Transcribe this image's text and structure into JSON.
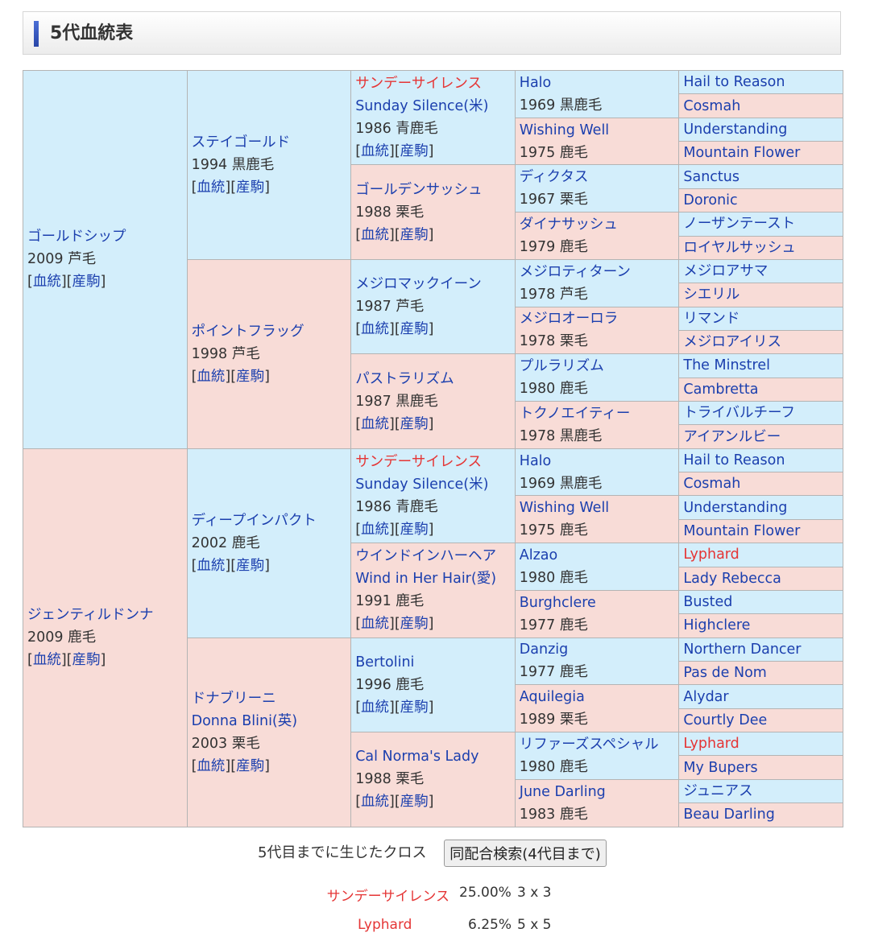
{
  "header": {
    "title": "5代血統表"
  },
  "link_labels": [
    "血統",
    "産駒"
  ],
  "colors": {
    "sire": "#d3eefb",
    "dam": "#f8dcd7",
    "link": "#1b3fae",
    "cross": "#e53535"
  },
  "pedigree": {
    "gen1": [
      {
        "name": "ゴールドシップ",
        "info": "2009 芦毛"
      },
      {
        "name": "ジェンティルドンナ",
        "info": "2009 鹿毛"
      }
    ],
    "gen2": [
      {
        "name": "ステイゴールド",
        "info": "1994 黒鹿毛"
      },
      {
        "name": "ポイントフラッグ",
        "info": "1998 芦毛"
      },
      {
        "name": "ディープインパクト",
        "info": "2002 鹿毛"
      },
      {
        "name": "ドナブリーニ",
        "name_en": "Donna Blini(英)",
        "info": "2003 栗毛"
      }
    ],
    "gen3": [
      {
        "name": "サンデーサイレンス",
        "name_en": "Sunday Silence(米)",
        "info": "1986 青鹿毛",
        "cross": true
      },
      {
        "name": "ゴールデンサッシュ",
        "info": "1988 栗毛"
      },
      {
        "name": "メジロマックイーン",
        "info": "1987 芦毛"
      },
      {
        "name": "パストラリズム",
        "info": "1987 黒鹿毛"
      },
      {
        "name": "サンデーサイレンス",
        "name_en": "Sunday Silence(米)",
        "info": "1986 青鹿毛",
        "cross": true
      },
      {
        "name": "ウインドインハーヘア",
        "name_en": "Wind in Her Hair(愛)",
        "info": "1991 鹿毛"
      },
      {
        "name": "Bertolini",
        "info": "1996 鹿毛"
      },
      {
        "name": "Cal Norma's Lady",
        "info": "1988 栗毛"
      }
    ],
    "gen4": [
      {
        "name": "Halo",
        "info": "1969 黒鹿毛"
      },
      {
        "name": "Wishing Well",
        "info": "1975 鹿毛"
      },
      {
        "name": "ディクタス",
        "info": "1967 栗毛"
      },
      {
        "name": "ダイナサッシュ",
        "info": "1979 鹿毛"
      },
      {
        "name": "メジロティターン",
        "info": "1978 芦毛"
      },
      {
        "name": "メジロオーロラ",
        "info": "1978 栗毛"
      },
      {
        "name": "プルラリズム",
        "info": "1980 鹿毛"
      },
      {
        "name": "トクノエイティー",
        "info": "1978 黒鹿毛"
      },
      {
        "name": "Halo",
        "info": "1969 黒鹿毛"
      },
      {
        "name": "Wishing Well",
        "info": "1975 鹿毛"
      },
      {
        "name": "Alzao",
        "info": "1980 鹿毛"
      },
      {
        "name": "Burghclere",
        "info": "1977 鹿毛"
      },
      {
        "name": "Danzig",
        "info": "1977 鹿毛"
      },
      {
        "name": "Aquilegia",
        "info": "1989 栗毛"
      },
      {
        "name": "リファーズスペシャル",
        "info": "1980 鹿毛"
      },
      {
        "name": "June Darling",
        "info": "1983 鹿毛"
      }
    ],
    "gen5": [
      {
        "name": "Hail to Reason"
      },
      {
        "name": "Cosmah"
      },
      {
        "name": "Understanding"
      },
      {
        "name": "Mountain Flower"
      },
      {
        "name": "Sanctus"
      },
      {
        "name": "Doronic"
      },
      {
        "name": "ノーザンテースト"
      },
      {
        "name": "ロイヤルサッシュ"
      },
      {
        "name": "メジロアサマ"
      },
      {
        "name": "シエリル"
      },
      {
        "name": "リマンド"
      },
      {
        "name": "メジロアイリス"
      },
      {
        "name": "The Minstrel"
      },
      {
        "name": "Cambretta"
      },
      {
        "name": "トライバルチーフ"
      },
      {
        "name": "アイアンルビー"
      },
      {
        "name": "Hail to Reason"
      },
      {
        "name": "Cosmah"
      },
      {
        "name": "Understanding"
      },
      {
        "name": "Mountain Flower"
      },
      {
        "name": "Lyphard",
        "cross": true
      },
      {
        "name": "Lady Rebecca"
      },
      {
        "name": "Busted"
      },
      {
        "name": "Highclere"
      },
      {
        "name": "Northern Dancer"
      },
      {
        "name": "Pas de Nom"
      },
      {
        "name": "Alydar"
      },
      {
        "name": "Courtly Dee"
      },
      {
        "name": "Lyphard",
        "cross": true
      },
      {
        "name": "My Bupers"
      },
      {
        "name": "ジュニアス"
      },
      {
        "name": "Beau Darling"
      }
    ]
  },
  "crosses": {
    "label": "5代目までに生じたクロス",
    "search_button": "同配合検索(4代目まで)",
    "items": [
      {
        "name": "サンデーサイレンス",
        "percent": "25.00%",
        "pattern": "3 x 3"
      },
      {
        "name": "Lyphard",
        "percent": "6.25%",
        "pattern": "5 x 5"
      }
    ]
  }
}
